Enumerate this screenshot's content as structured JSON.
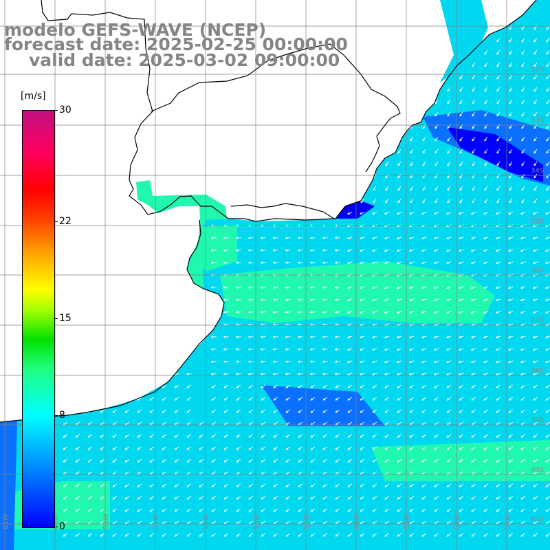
{
  "header": {
    "title_line1": "modelo GEFS-WAVE (NCEP)",
    "title_line2": "forecast date: 2025-02-25 00:00:00",
    "title_line3": "valid date: 2025-03-02 09:00:00"
  },
  "colorbar": {
    "unit": "[m/s]",
    "ticks": [
      "30",
      "22",
      "15",
      "8",
      "0"
    ],
    "tick_values": [
      30,
      22,
      15,
      8,
      0
    ],
    "min": 0,
    "max": 30
  },
  "map": {
    "lat_labels": [
      "32S",
      "33S",
      "34S",
      "35S",
      "36S",
      "37S",
      "38S",
      "39S",
      "40S",
      "41S"
    ],
    "lon_labels": [
      "61W",
      "60W",
      "59W",
      "58W",
      "57W",
      "56W",
      "55W",
      "54W",
      "53W",
      "52W",
      "51W"
    ],
    "colors": {
      "ocean_main": "#00d8f0",
      "ocean_blue": "#0a70ff",
      "ocean_deep": "#0000ff",
      "ocean_green": "#20f8b0",
      "land": "#ffffff",
      "grid": "#808080",
      "coast": "#000000",
      "arrow": "#ffffff"
    }
  }
}
